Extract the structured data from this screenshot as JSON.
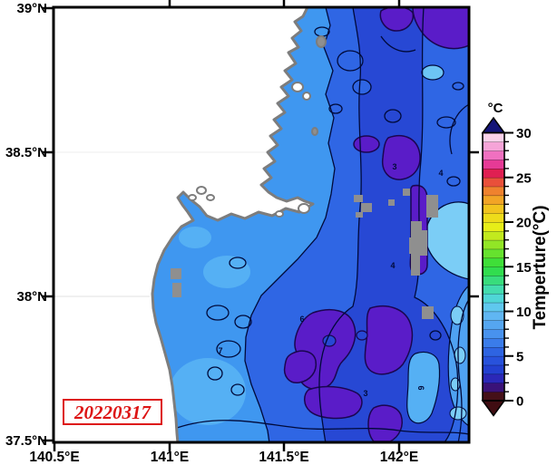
{
  "figure": {
    "date_stamp": "20220317",
    "axes": {
      "x_ticks": [
        "140.5°E",
        "141°E",
        "141.5°E",
        "142°E"
      ],
      "y_ticks": [
        "39°N",
        "38.5°N",
        "38°N",
        "37.5°N"
      ]
    },
    "colorbar": {
      "units_label": "°C",
      "axis_label": "Temperture(°C)",
      "tick_values": [
        0,
        5,
        10,
        15,
        20,
        25,
        30
      ],
      "min": 0,
      "max": 30,
      "segment_step_c": 1,
      "colors_low_to_high": [
        "#451018",
        "#3a1278",
        "#2b28b8",
        "#2340d0",
        "#2852dc",
        "#2e64e2",
        "#3a7cea",
        "#4892ee",
        "#55a6f1",
        "#60b6f3",
        "#5fc8ee",
        "#4fd6d6",
        "#43dcae",
        "#38dc7c",
        "#31dd4e",
        "#3fdf38",
        "#66e22e",
        "#92e626",
        "#c2ea1e",
        "#e7ee18",
        "#eedc1a",
        "#f2c41e",
        "#f2a426",
        "#ef822e",
        "#e9503a",
        "#e01f52",
        "#e63a96",
        "#f070c0",
        "#f6a4d8",
        "#fbd2ea"
      ],
      "over_color": "#141478",
      "under_color": "#400d12"
    },
    "map": {
      "contour_labels": [
        "3",
        "4",
        "4",
        "6",
        "7",
        "6",
        "3"
      ],
      "land_color": "#ffffff",
      "coast_color": "#7d7d7d",
      "contour_color": "#000a3a",
      "cloud_gray": "#8f8f8f",
      "sea_colors": {
        "base_mid": "#2f66e4",
        "coastal_light": "#3f97f0",
        "bay_lighter": "#55b0f4",
        "deep_band": "#2748d4",
        "cold_purple": "#5a1cc8",
        "warm_cyan": "#7bcdf6",
        "right_strip": "#4fa2f2"
      }
    }
  },
  "chart_data": {
    "type": "heatmap",
    "title": "",
    "variable": "Sea surface temperature",
    "units": "°C",
    "date": "20220317",
    "x_tick_labels": [
      "140.5°E",
      "141°E",
      "141.5°E",
      "142°E"
    ],
    "y_tick_labels": [
      "37.5°N",
      "38°N",
      "38.5°N",
      "39°N"
    ],
    "x_range_deg_e": [
      140.5,
      142.3
    ],
    "y_range_deg_n": [
      37.5,
      39.0
    ],
    "colorbar": {
      "label": "Temperture(°C)",
      "units_label": "°C",
      "range_c": [
        0,
        30
      ],
      "ticks_c": [
        0,
        5,
        10,
        15,
        20,
        25,
        30
      ],
      "segment_c": 1,
      "orientation": "vertical-right",
      "over_arrow": true,
      "under_arrow": true
    },
    "contour_interval_c": 1,
    "visible_contour_label_values_c": [
      3,
      4,
      6,
      7
    ],
    "regions_estimated_c": [
      {
        "region": "Sendai Bay and western coastal water",
        "temp_c": 7
      },
      {
        "region": "central offshore band around 141.8E",
        "temp_c": 4.5
      },
      {
        "region": "cold purple patches east and southeast",
        "temp_c": 2.5
      },
      {
        "region": "cold purple patches along northern edge",
        "temp_c": 2.5
      },
      {
        "region": "warm light-cyan patch near 142.2E 38.2N",
        "temp_c": 8.5
      },
      {
        "region": "lighter strip along eastern edge",
        "temp_c": 7.5
      }
    ],
    "no_data_gray_patches": "blocky gray pixels near 142E between 38.0N and 38.35N",
    "land": "white with gray coastline, west side (Miyagi coast, Japan)",
    "grid": "off",
    "legend_position": "right"
  }
}
